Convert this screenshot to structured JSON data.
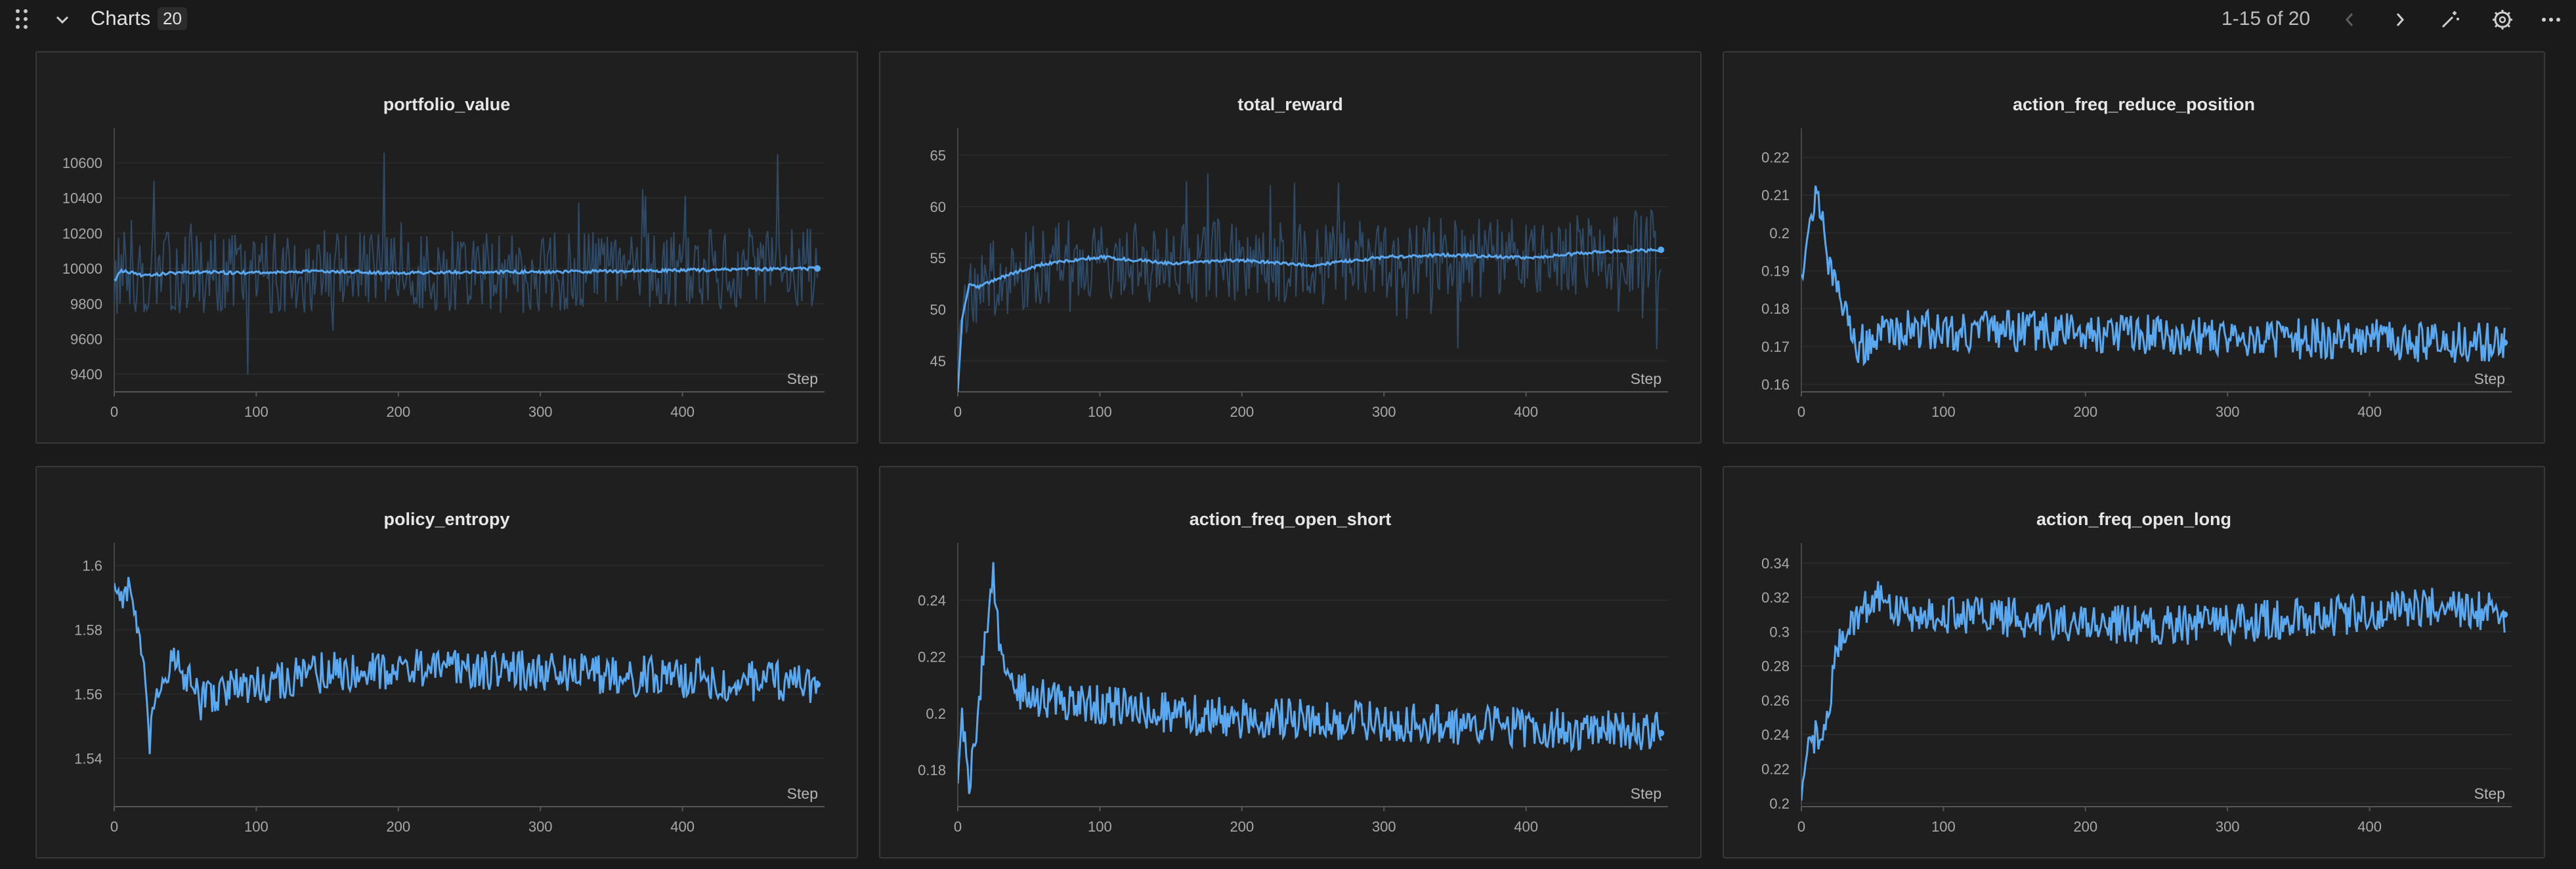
{
  "header": {
    "title": "Charts",
    "count": "20",
    "pagination": "1-15 of 20"
  },
  "icons": {
    "drag": "drag-handle-icon",
    "collapse": "chevron-down-icon",
    "prev": "chevron-left-icon",
    "next": "chevron-right-icon",
    "magic": "magic-wand-icon",
    "settings": "gear-icon",
    "more": "more-horizontal-icon"
  },
  "colors": {
    "line": "#5aa8f0",
    "raw_line": "#2f4a66",
    "background": "#1a1a1a",
    "panel": "#1f1f1f"
  },
  "chart_data": [
    {
      "type": "line",
      "title": "portfolio_value",
      "xlabel": "Step",
      "ylabel": "",
      "xlim": [
        0,
        500
      ],
      "ylim": [
        9300,
        10760
      ],
      "xticks": [
        0,
        100,
        200,
        300,
        400
      ],
      "yticks": [
        9400,
        9600,
        9800,
        10000,
        10200,
        10400,
        10600
      ],
      "raw_noise": true,
      "series": [
        {
          "x": [
            0,
            5,
            20,
            50,
            100,
            150,
            200,
            250,
            300,
            350,
            400,
            450,
            500
          ],
          "y": [
            9930,
            9990,
            9960,
            9980,
            9975,
            9985,
            9975,
            9980,
            9980,
            9985,
            9990,
            9995,
            10000
          ]
        }
      ]
    },
    {
      "type": "line",
      "title": "total_reward",
      "xlabel": "Step",
      "ylabel": "",
      "xlim": [
        0,
        500
      ],
      "ylim": [
        42,
        67
      ],
      "xticks": [
        0,
        100,
        200,
        300,
        400
      ],
      "yticks": [
        45,
        50,
        55,
        60,
        65
      ],
      "raw_noise": true,
      "series": [
        {
          "x": [
            0,
            3,
            8,
            15,
            25,
            40,
            60,
            80,
            100,
            150,
            200,
            250,
            300,
            350,
            400,
            450,
            500
          ],
          "y": [
            42,
            49,
            52.5,
            52.2,
            52.8,
            53.6,
            54.4,
            54.8,
            55.1,
            54.5,
            54.8,
            54.3,
            55.1,
            55.3,
            55.0,
            55.6,
            55.8
          ]
        }
      ]
    },
    {
      "type": "line",
      "title": "action_freq_reduce_position",
      "xlabel": "Step",
      "ylabel": "",
      "xlim": [
        0,
        500
      ],
      "ylim": [
        0.158,
        0.226
      ],
      "xticks": [
        0,
        100,
        200,
        300,
        400
      ],
      "yticks": [
        0.16,
        0.17,
        0.18,
        0.19,
        0.2,
        0.21,
        0.22
      ],
      "series": [
        {
          "x": [
            0,
            5,
            10,
            15,
            20,
            25,
            30,
            35,
            40,
            50,
            60,
            80,
            100,
            150,
            200,
            250,
            300,
            350,
            400,
            450,
            500
          ],
          "y": [
            0.19,
            0.2,
            0.21,
            0.205,
            0.19,
            0.185,
            0.18,
            0.175,
            0.17,
            0.172,
            0.174,
            0.175,
            0.174,
            0.174,
            0.174,
            0.173,
            0.173,
            0.172,
            0.172,
            0.171,
            0.171
          ]
        }
      ]
    },
    {
      "type": "line",
      "title": "policy_entropy",
      "xlabel": "Step",
      "ylabel": "",
      "xlim": [
        0,
        500
      ],
      "ylim": [
        1.525,
        1.605
      ],
      "xticks": [
        0,
        100,
        200,
        300,
        400
      ],
      "yticks": [
        1.54,
        1.56,
        1.58,
        1.6
      ],
      "series": [
        {
          "x": [
            0,
            5,
            10,
            15,
            20,
            25,
            30,
            40,
            50,
            60,
            80,
            100,
            150,
            200,
            250,
            300,
            350,
            400,
            450,
            500
          ],
          "y": [
            1.595,
            1.59,
            1.593,
            1.585,
            1.57,
            1.545,
            1.56,
            1.57,
            1.565,
            1.558,
            1.562,
            1.563,
            1.567,
            1.568,
            1.568,
            1.567,
            1.566,
            1.565,
            1.564,
            1.563
          ]
        }
      ]
    },
    {
      "type": "line",
      "title": "action_freq_open_short",
      "xlabel": "Step",
      "ylabel": "",
      "xlim": [
        0,
        500
      ],
      "ylim": [
        0.167,
        0.258
      ],
      "xticks": [
        0,
        100,
        200,
        300,
        400
      ],
      "yticks": [
        0.18,
        0.2,
        0.22,
        0.24
      ],
      "series": [
        {
          "x": [
            0,
            3,
            8,
            12,
            16,
            20,
            25,
            30,
            40,
            60,
            100,
            150,
            200,
            250,
            300,
            350,
            400,
            450,
            500
          ],
          "y": [
            0.175,
            0.2,
            0.175,
            0.19,
            0.21,
            0.23,
            0.25,
            0.22,
            0.208,
            0.205,
            0.203,
            0.2,
            0.198,
            0.198,
            0.197,
            0.196,
            0.195,
            0.194,
            0.193
          ]
        }
      ]
    },
    {
      "type": "line",
      "title": "action_freq_open_long",
      "xlabel": "Step",
      "ylabel": "",
      "xlim": [
        0,
        500
      ],
      "ylim": [
        0.198,
        0.348
      ],
      "xticks": [
        0,
        100,
        200,
        300,
        400
      ],
      "yticks": [
        0.2,
        0.22,
        0.24,
        0.26,
        0.28,
        0.3,
        0.32,
        0.34
      ],
      "series": [
        {
          "x": [
            0,
            5,
            10,
            15,
            20,
            25,
            30,
            40,
            50,
            60,
            80,
            100,
            150,
            200,
            250,
            300,
            350,
            400,
            450,
            500
          ],
          "y": [
            0.2,
            0.23,
            0.24,
            0.235,
            0.26,
            0.29,
            0.3,
            0.31,
            0.32,
            0.315,
            0.31,
            0.31,
            0.308,
            0.305,
            0.303,
            0.305,
            0.308,
            0.31,
            0.315,
            0.31
          ]
        }
      ]
    }
  ]
}
